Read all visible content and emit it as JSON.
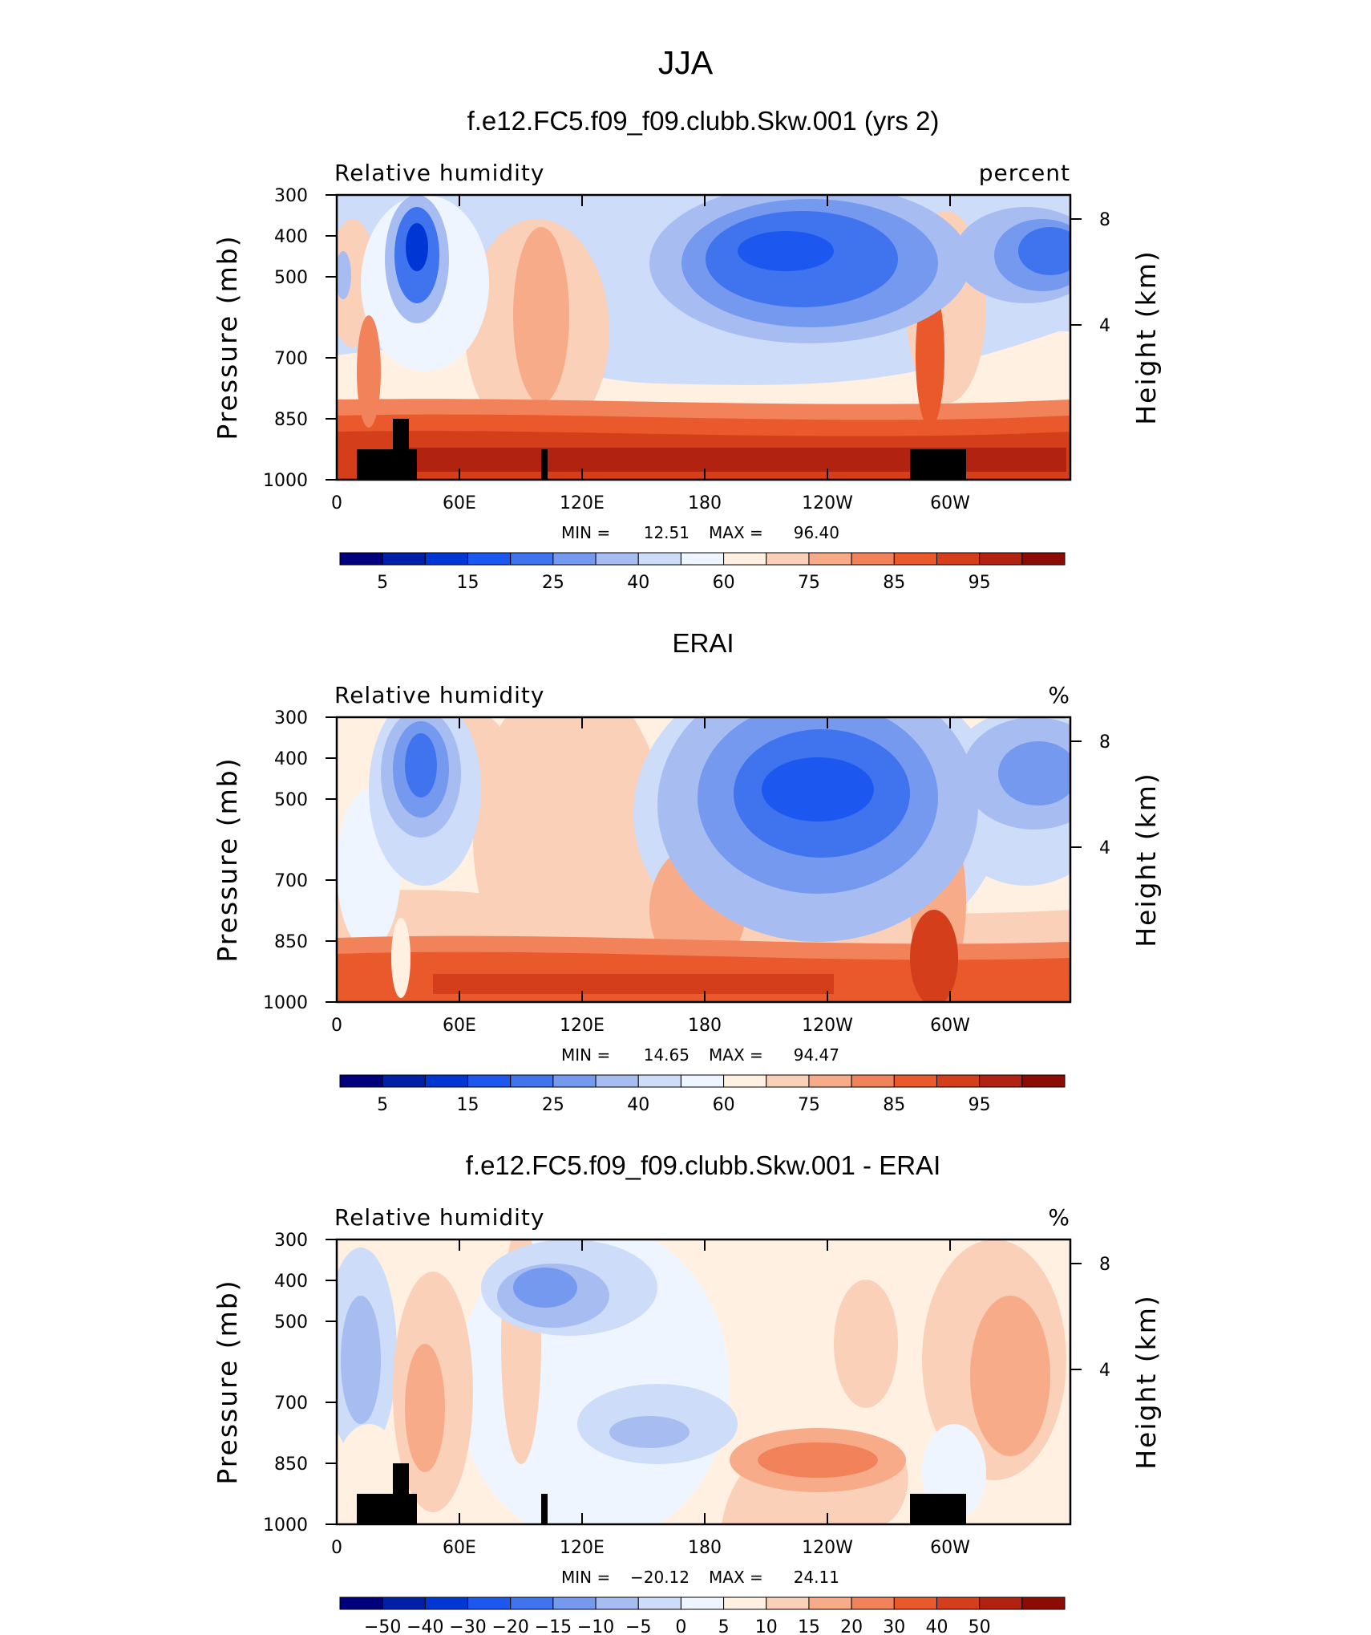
{
  "title": "JJA",
  "colors": {
    "scale": [
      "#00007f",
      "#0020a8",
      "#0037d4",
      "#1c58f0",
      "#3f74ee",
      "#7599ef",
      "#a7bdf2",
      "#cddcf8",
      "#eef5ff",
      "#fff0e2",
      "#fbd0b8",
      "#f7ab88",
      "#f18259",
      "#e9592c",
      "#d43e1a",
      "#b22210",
      "#8c0c04"
    ]
  },
  "panels": [
    {
      "title": "f.e12.FC5.f09_f09.clubb.Skw.001 (yrs 2)",
      "left_label": "Relative humidity",
      "right_label": "percent",
      "y_label": "Pressure (mb)",
      "y2_label": "Height (km)",
      "y_ticks": [
        "300",
        "400",
        "500",
        "700",
        "850",
        "1000"
      ],
      "y2_ticks": [
        "8",
        "4"
      ],
      "x_ticks": [
        "0",
        "60E",
        "120E",
        "180",
        "120W",
        "60W"
      ],
      "min_label": "MIN =",
      "min_value": "12.51",
      "max_label": "MAX =",
      "max_value": "96.40",
      "cb_labels": [
        "5",
        "15",
        "25",
        "40",
        "60",
        "75",
        "85",
        "95"
      ],
      "terrain": true,
      "chart_data": {
        "type": "heatmap",
        "variable": "Relative humidity",
        "units": "percent",
        "x_axis": "longitude (0 to 360)",
        "y_axis": "pressure (mb), 300 to 1000",
        "contour_levels": [
          5,
          10,
          15,
          20,
          25,
          30,
          40,
          50,
          60,
          65,
          70,
          75,
          80,
          85,
          90,
          95
        ],
        "min": 12.51,
        "max": 96.4,
        "features": [
          {
            "lon": 40,
            "p": 400,
            "value": 15
          },
          {
            "lon": 215,
            "p": 400,
            "value": 15
          },
          {
            "lon": 340,
            "p": 400,
            "value": 20
          },
          {
            "lon": 180,
            "p": 930,
            "value": 90
          },
          {
            "lon": 335,
            "p": 930,
            "value": 90
          },
          {
            "lon": 95,
            "p": 550,
            "value": 75
          }
        ]
      }
    },
    {
      "title": "ERAI",
      "left_label": "Relative humidity",
      "right_label": "%",
      "y_label": "Pressure (mb)",
      "y2_label": "Height (km)",
      "y_ticks": [
        "300",
        "400",
        "500",
        "700",
        "850",
        "1000"
      ],
      "y2_ticks": [
        "8",
        "4"
      ],
      "x_ticks": [
        "0",
        "60E",
        "120E",
        "180",
        "120W",
        "60W"
      ],
      "min_label": "MIN =",
      "min_value": "14.65",
      "max_label": "MAX =",
      "max_value": "94.47",
      "cb_labels": [
        "5",
        "15",
        "25",
        "40",
        "60",
        "75",
        "85",
        "95"
      ],
      "terrain": false,
      "chart_data": {
        "type": "heatmap",
        "variable": "Relative humidity",
        "units": "%",
        "x_axis": "longitude (0 to 360)",
        "y_axis": "pressure (mb), 300 to 1000",
        "contour_levels": [
          5,
          10,
          15,
          20,
          25,
          30,
          40,
          50,
          60,
          65,
          70,
          75,
          80,
          85,
          90,
          95
        ],
        "min": 14.65,
        "max": 94.47,
        "features": [
          {
            "lon": 45,
            "p": 420,
            "value": 20
          },
          {
            "lon": 230,
            "p": 450,
            "value": 15
          },
          {
            "lon": 340,
            "p": 420,
            "value": 25
          },
          {
            "lon": 180,
            "p": 940,
            "value": 85
          },
          {
            "lon": 290,
            "p": 950,
            "value": 85
          }
        ]
      }
    },
    {
      "title": "f.e12.FC5.f09_f09.clubb.Skw.001 - ERAI",
      "left_label": "Relative humidity",
      "right_label": "%",
      "y_label": "Pressure (mb)",
      "y2_label": "Height (km)",
      "y_ticks": [
        "300",
        "400",
        "500",
        "700",
        "850",
        "1000"
      ],
      "y2_ticks": [
        "8",
        "4"
      ],
      "x_ticks": [
        "0",
        "60E",
        "120E",
        "180",
        "120W",
        "60W"
      ],
      "min_label": "MIN =",
      "min_value": "−20.12",
      "max_label": "MAX =",
      "max_value": "24.11",
      "cb_labels": [
        "−50",
        "−40",
        "−30",
        "−20",
        "−15",
        "−10",
        "−5",
        "0",
        "5",
        "10",
        "15",
        "20",
        "30",
        "40",
        "50"
      ],
      "terrain": true,
      "chart_data": {
        "type": "heatmap",
        "variable": "Relative humidity difference",
        "units": "%",
        "x_axis": "longitude (0 to 360)",
        "y_axis": "pressure (mb), 300 to 1000",
        "contour_levels": [
          -50,
          -40,
          -30,
          -20,
          -15,
          -10,
          -5,
          0,
          5,
          10,
          15,
          20,
          30,
          40,
          50
        ],
        "min": -20.12,
        "max": 24.11,
        "features": [
          {
            "lon": 145,
            "p": 400,
            "value": -15
          },
          {
            "lon": 155,
            "p": 780,
            "value": -10
          },
          {
            "lon": 235,
            "p": 870,
            "value": 20
          },
          {
            "lon": 325,
            "p": 650,
            "value": 15
          },
          {
            "lon": 45,
            "p": 780,
            "value": 15
          },
          {
            "lon": 10,
            "p": 600,
            "value": -10
          }
        ]
      }
    }
  ]
}
